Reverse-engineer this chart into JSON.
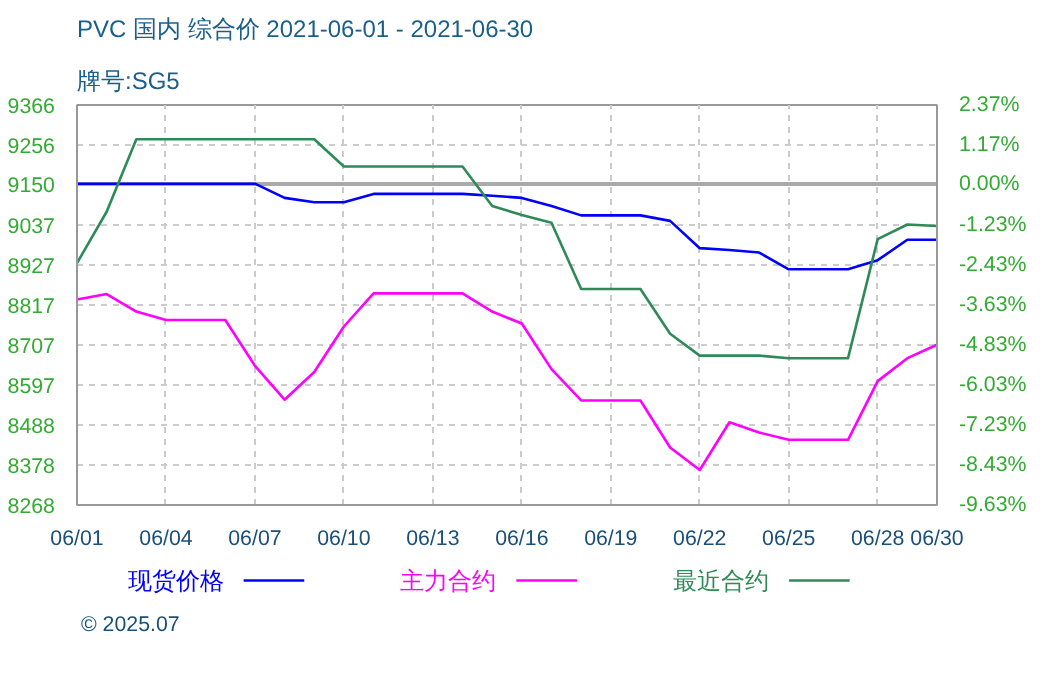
{
  "chart_data": {
    "type": "line",
    "title": "PVC 国内 综合价 2021-06-01 - 2021-06-30",
    "subtitle": "牌号:SG5",
    "x": [
      "2021-06-01",
      "2021-06-02",
      "2021-06-03",
      "2021-06-04",
      "2021-06-05",
      "2021-06-06",
      "2021-06-07",
      "2021-06-08",
      "2021-06-09",
      "2021-06-10",
      "2021-06-11",
      "2021-06-12",
      "2021-06-13",
      "2021-06-14",
      "2021-06-15",
      "2021-06-16",
      "2021-06-17",
      "2021-06-18",
      "2021-06-19",
      "2021-06-20",
      "2021-06-21",
      "2021-06-22",
      "2021-06-23",
      "2021-06-24",
      "2021-06-25",
      "2021-06-26",
      "2021-06-27",
      "2021-06-28",
      "2021-06-29",
      "2021-06-30"
    ],
    "series": [
      {
        "name": "现货价格",
        "color": "#0000ff",
        "values": [
          9150,
          9150,
          9150,
          9150,
          9150,
          9150,
          9150,
          9111,
          9099,
          9099,
          9122,
          9122,
          9122,
          9122,
          9117,
          9111,
          9089,
          9063,
          9063,
          9063,
          9048,
          8973,
          8968,
          8961,
          8915,
          8915,
          8915,
          8940,
          8996,
          8996
        ]
      },
      {
        "name": "主力合约",
        "color": "#ff00ff",
        "values": [
          8832,
          8847,
          8799,
          8776,
          8776,
          8776,
          8650,
          8557,
          8633,
          8758,
          8849,
          8849,
          8849,
          8849,
          8799,
          8766,
          8641,
          8555,
          8555,
          8555,
          8426,
          8364,
          8495,
          8467,
          8447,
          8447,
          8447,
          8608,
          8671,
          8708
        ]
      },
      {
        "name": "最近合约",
        "color": "#2e8b57",
        "values": [
          8932,
          9073,
          9272,
          9272,
          9272,
          9272,
          9272,
          9272,
          9272,
          9197,
          9197,
          9197,
          9197,
          9197,
          9089,
          9064,
          9043,
          8861,
          8861,
          8861,
          8738,
          8678,
          8678,
          8678,
          8671,
          8671,
          8671,
          8998,
          9038,
          9034
        ]
      }
    ],
    "xlim": [
      "2021-06-01",
      "2021-06-30"
    ],
    "xticks": [
      {
        "value": "2021-06-01",
        "label": "06/01"
      },
      {
        "value": "2021-06-04",
        "label": "06/04"
      },
      {
        "value": "2021-06-07",
        "label": "06/07"
      },
      {
        "value": "2021-06-10",
        "label": "06/10"
      },
      {
        "value": "2021-06-13",
        "label": "06/13"
      },
      {
        "value": "2021-06-16",
        "label": "06/16"
      },
      {
        "value": "2021-06-19",
        "label": "06/19"
      },
      {
        "value": "2021-06-22",
        "label": "06/22"
      },
      {
        "value": "2021-06-25",
        "label": "06/25"
      },
      {
        "value": "2021-06-28",
        "label": "06/28"
      },
      {
        "value": "2021-06-30",
        "label": "06/30"
      }
    ],
    "ylim": [
      8268,
      9366
    ],
    "yticks": [
      8268,
      8378,
      8488,
      8597,
      8707,
      8817,
      8927,
      9037,
      9150,
      9256,
      9366
    ],
    "y2lim": [
      -9.63,
      2.37
    ],
    "y2ticks": [
      {
        "value": -9.63,
        "label": "-9.63%"
      },
      {
        "value": -8.43,
        "label": "-8.43%"
      },
      {
        "value": -7.23,
        "label": "-7.23%"
      },
      {
        "value": -6.03,
        "label": "-6.03%"
      },
      {
        "value": -4.83,
        "label": "-4.83%"
      },
      {
        "value": -3.63,
        "label": "-3.63%"
      },
      {
        "value": -2.43,
        "label": "-2.43%"
      },
      {
        "value": -1.23,
        "label": "-1.23%"
      },
      {
        "value": 0,
        "label": "0.00%"
      },
      {
        "value": 1.17,
        "label": "1.17%"
      },
      {
        "value": 2.37,
        "label": "2.37%"
      }
    ],
    "ref_lines": [
      {
        "axis": "y2",
        "value": 0,
        "color": "#aaaaaa",
        "line_style": "solid"
      }
    ],
    "annotations": [
      "© 2025.07"
    ],
    "grid": true,
    "legend": "bottom",
    "line_style": "solid",
    "marker": "none"
  }
}
